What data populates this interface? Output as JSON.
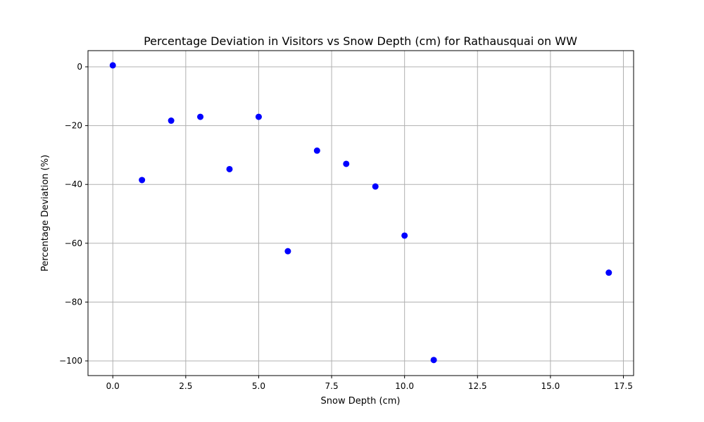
{
  "chart_data": {
    "type": "scatter",
    "title": "Percentage Deviation in Visitors vs Snow Depth (cm) for Rathausquai on WW",
    "xlabel": "Snow Depth (cm)",
    "ylabel": "Percentage Deviation (%)",
    "xlim": [
      -0.85,
      17.85
    ],
    "ylim": [
      -105,
      5.5
    ],
    "xticks": [
      0.0,
      2.5,
      5.0,
      7.5,
      10.0,
      12.5,
      15.0,
      17.5
    ],
    "xtick_labels": [
      "0.0",
      "2.5",
      "5.0",
      "7.5",
      "10.0",
      "12.5",
      "15.0",
      "17.5"
    ],
    "yticks": [
      0,
      -20,
      -40,
      -60,
      -80,
      -100
    ],
    "ytick_labels": [
      "0",
      "−20",
      "−40",
      "−60",
      "−80",
      "−100"
    ],
    "grid": true,
    "marker_color": "#0000ff",
    "points": [
      {
        "x": 0,
        "y": 0.5
      },
      {
        "x": 1,
        "y": -38.5
      },
      {
        "x": 2,
        "y": -18.3
      },
      {
        "x": 3,
        "y": -17.0
      },
      {
        "x": 4,
        "y": -34.8
      },
      {
        "x": 5,
        "y": -17.0
      },
      {
        "x": 6,
        "y": -62.7
      },
      {
        "x": 7,
        "y": -28.5
      },
      {
        "x": 8,
        "y": -33.0
      },
      {
        "x": 9,
        "y": -40.7
      },
      {
        "x": 10,
        "y": -57.4
      },
      {
        "x": 11,
        "y": -99.7
      },
      {
        "x": 17,
        "y": -70.0
      }
    ]
  }
}
